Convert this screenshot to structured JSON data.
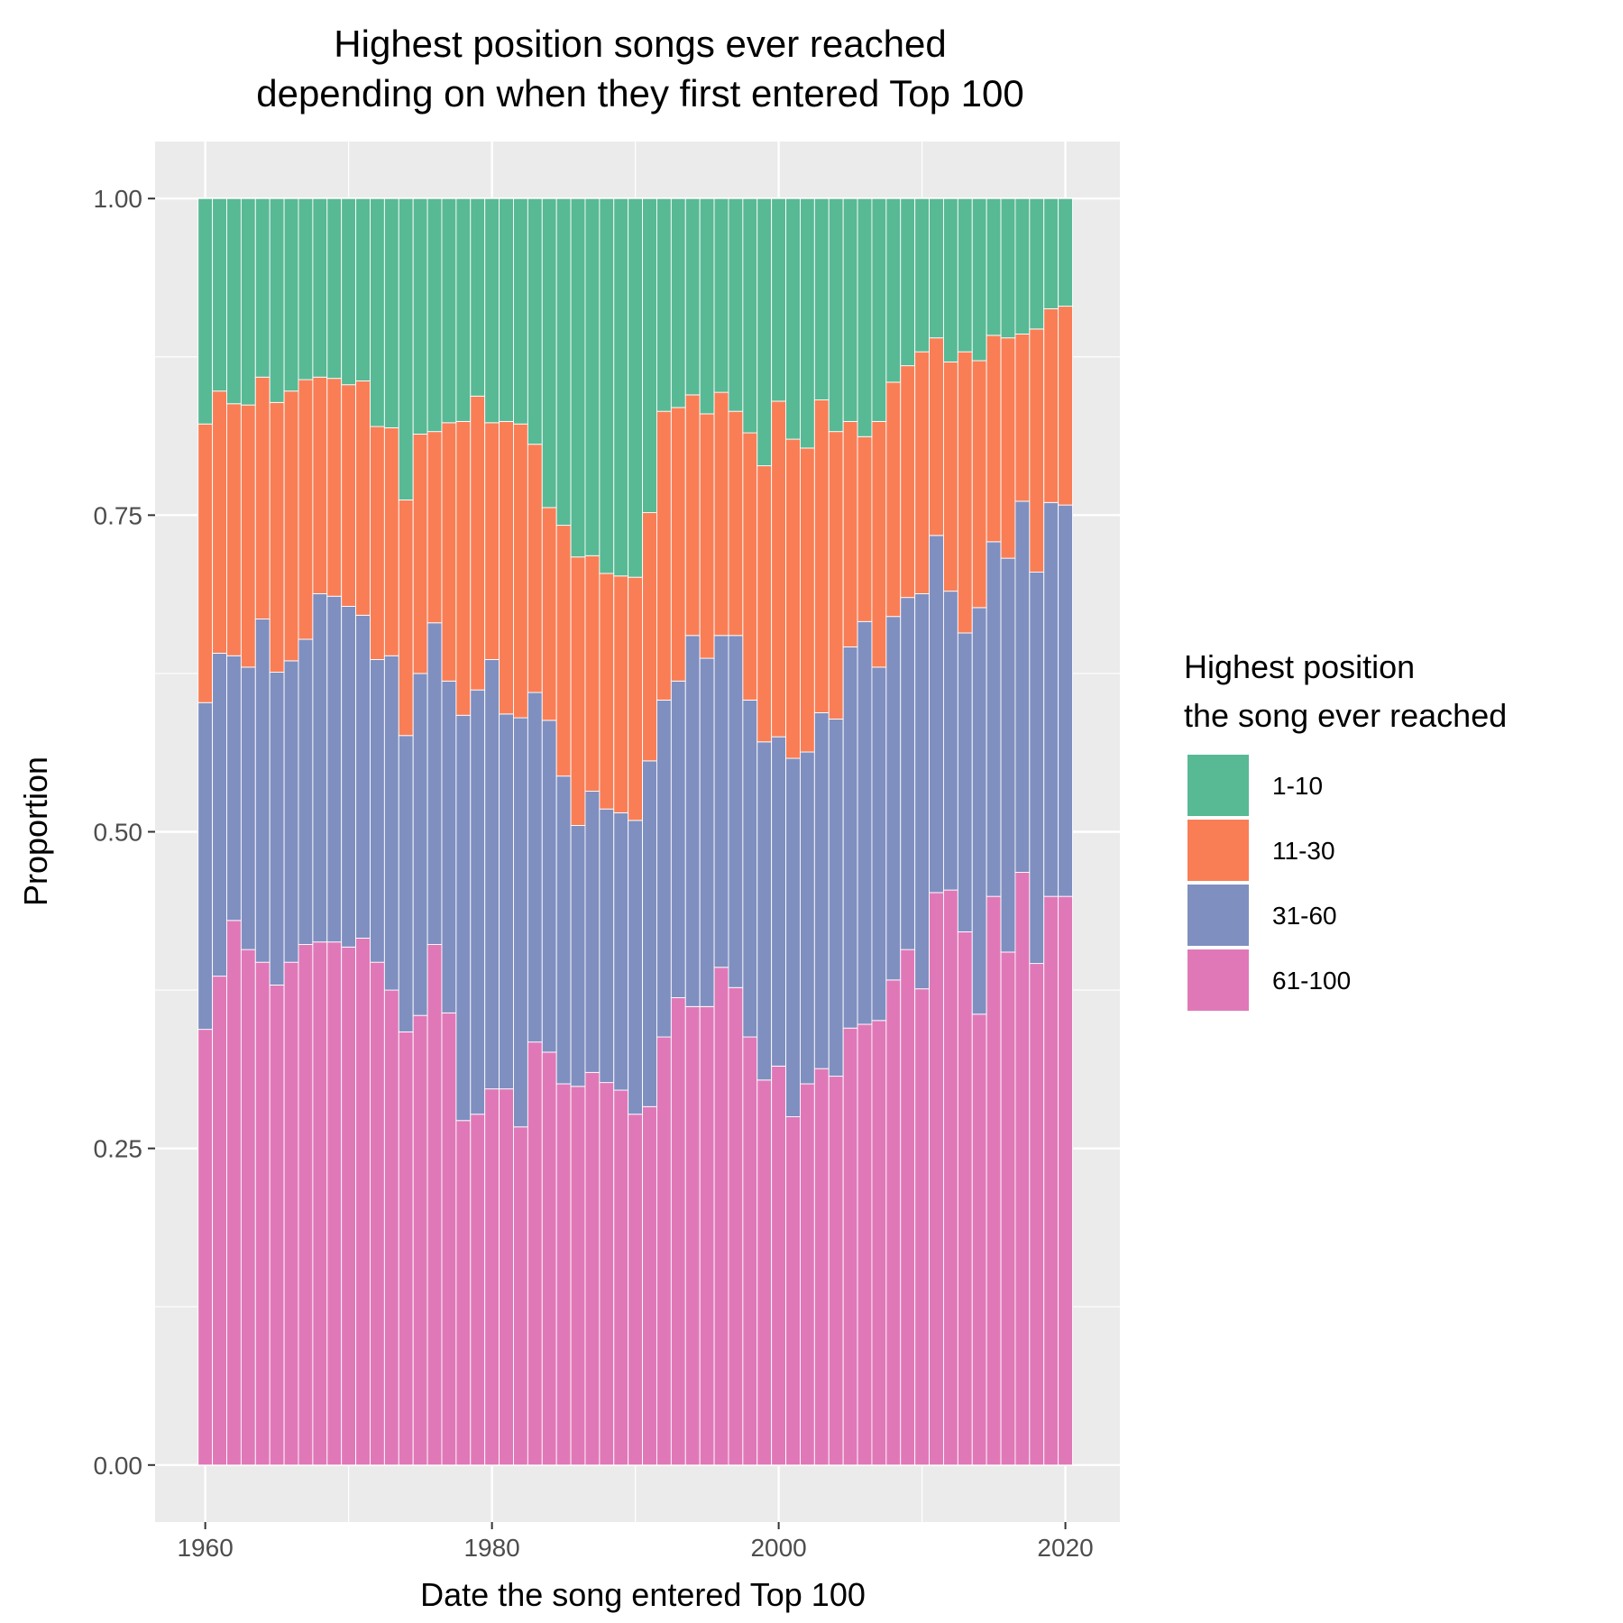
{
  "chart_data": {
    "type": "bar",
    "stacked": true,
    "position": "fill",
    "title": [
      "Highest position songs ever reached",
      "depending on when they first entered Top 100"
    ],
    "xlabel": "Date the song entered Top 100",
    "ylabel": "Proportion",
    "xlim": [
      1956.5,
      2023.8
    ],
    "ylim": [
      -0.045,
      1.045
    ],
    "x_ticks": [
      {
        "value": 1960,
        "label": "1960"
      },
      {
        "value": 1980,
        "label": "1980"
      },
      {
        "value": 2000,
        "label": "2000"
      },
      {
        "value": 2020,
        "label": "2020"
      }
    ],
    "y_ticks": [
      {
        "value": 0.0,
        "label": "0.00"
      },
      {
        "value": 0.25,
        "label": "0.25"
      },
      {
        "value": 0.5,
        "label": "0.50"
      },
      {
        "value": 0.75,
        "label": "0.75"
      },
      {
        "value": 1.0,
        "label": "1.00"
      }
    ],
    "grid": true,
    "legend": {
      "title": [
        "Highest position",
        "the song ever reached"
      ],
      "placement": "right"
    },
    "x": [
      1960,
      1961,
      1962,
      1963,
      1964,
      1965,
      1966,
      1967,
      1968,
      1969,
      1970,
      1971,
      1972,
      1973,
      1974,
      1975,
      1976,
      1977,
      1978,
      1979,
      1980,
      1981,
      1982,
      1983,
      1984,
      1985,
      1986,
      1987,
      1988,
      1989,
      1990,
      1991,
      1992,
      1993,
      1994,
      1995,
      1996,
      1997,
      1998,
      1999,
      2000,
      2001,
      2002,
      2003,
      2004,
      2005,
      2006,
      2007,
      2008,
      2009,
      2010,
      2011,
      2012,
      2013,
      2014,
      2015,
      2016,
      2017,
      2018,
      2019,
      2020
    ],
    "series": [
      {
        "name": "61-100",
        "color": "#E078B8",
        "values": [
          0.344,
          0.386,
          0.43,
          0.407,
          0.397,
          0.379,
          0.397,
          0.411,
          0.413,
          0.413,
          0.409,
          0.416,
          0.397,
          0.375,
          0.342,
          0.355,
          0.411,
          0.357,
          0.272,
          0.277,
          0.297,
          0.297,
          0.267,
          0.334,
          0.326,
          0.301,
          0.299,
          0.31,
          0.302,
          0.296,
          0.277,
          0.283,
          0.338,
          0.369,
          0.362,
          0.362,
          0.393,
          0.377,
          0.338,
          0.304,
          0.315,
          0.275,
          0.301,
          0.313,
          0.307,
          0.345,
          0.348,
          0.351,
          0.383,
          0.407,
          0.376,
          0.452,
          0.454,
          0.421,
          0.356,
          0.449,
          0.405,
          0.468,
          0.396,
          0.449,
          0.449
        ]
      },
      {
        "name": "31-60",
        "color": "#7F8FC0",
        "values": [
          0.258,
          0.255,
          0.209,
          0.223,
          0.271,
          0.247,
          0.238,
          0.241,
          0.275,
          0.273,
          0.269,
          0.255,
          0.239,
          0.264,
          0.234,
          0.27,
          0.254,
          0.262,
          0.32,
          0.335,
          0.339,
          0.296,
          0.323,
          0.276,
          0.262,
          0.243,
          0.206,
          0.222,
          0.216,
          0.219,
          0.232,
          0.273,
          0.266,
          0.25,
          0.293,
          0.275,
          0.262,
          0.278,
          0.266,
          0.267,
          0.26,
          0.283,
          0.262,
          0.281,
          0.282,
          0.301,
          0.318,
          0.279,
          0.287,
          0.278,
          0.312,
          0.282,
          0.236,
          0.236,
          0.321,
          0.28,
          0.311,
          0.293,
          0.309,
          0.311,
          0.309
        ]
      },
      {
        "name": "11-30",
        "color": "#F97E56",
        "values": [
          0.22,
          0.207,
          0.199,
          0.207,
          0.191,
          0.213,
          0.213,
          0.205,
          0.171,
          0.172,
          0.175,
          0.185,
          0.184,
          0.18,
          0.186,
          0.189,
          0.151,
          0.204,
          0.232,
          0.232,
          0.187,
          0.231,
          0.232,
          0.196,
          0.168,
          0.198,
          0.212,
          0.186,
          0.186,
          0.187,
          0.192,
          0.196,
          0.228,
          0.216,
          0.19,
          0.193,
          0.192,
          0.177,
          0.211,
          0.218,
          0.265,
          0.252,
          0.24,
          0.247,
          0.227,
          0.178,
          0.146,
          0.194,
          0.185,
          0.183,
          0.191,
          0.156,
          0.181,
          0.222,
          0.195,
          0.163,
          0.174,
          0.132,
          0.192,
          0.153,
          0.157
        ]
      },
      {
        "name": "1-10",
        "color": "#58B995",
        "values": [
          0.178,
          0.152,
          0.162,
          0.163,
          0.141,
          0.161,
          0.152,
          0.143,
          0.141,
          0.142,
          0.147,
          0.144,
          0.18,
          0.181,
          0.238,
          0.186,
          0.184,
          0.177,
          0.176,
          0.156,
          0.177,
          0.176,
          0.178,
          0.194,
          0.244,
          0.258,
          0.283,
          0.282,
          0.296,
          0.298,
          0.299,
          0.248,
          0.168,
          0.165,
          0.155,
          0.17,
          0.153,
          0.168,
          0.185,
          0.211,
          0.16,
          0.19,
          0.197,
          0.159,
          0.184,
          0.176,
          0.188,
          0.176,
          0.145,
          0.132,
          0.121,
          0.11,
          0.129,
          0.121,
          0.128,
          0.108,
          0.11,
          0.107,
          0.103,
          0.087,
          0.085
        ]
      }
    ],
    "legend_order": [
      "1-10",
      "11-30",
      "31-60",
      "61-100"
    ]
  }
}
